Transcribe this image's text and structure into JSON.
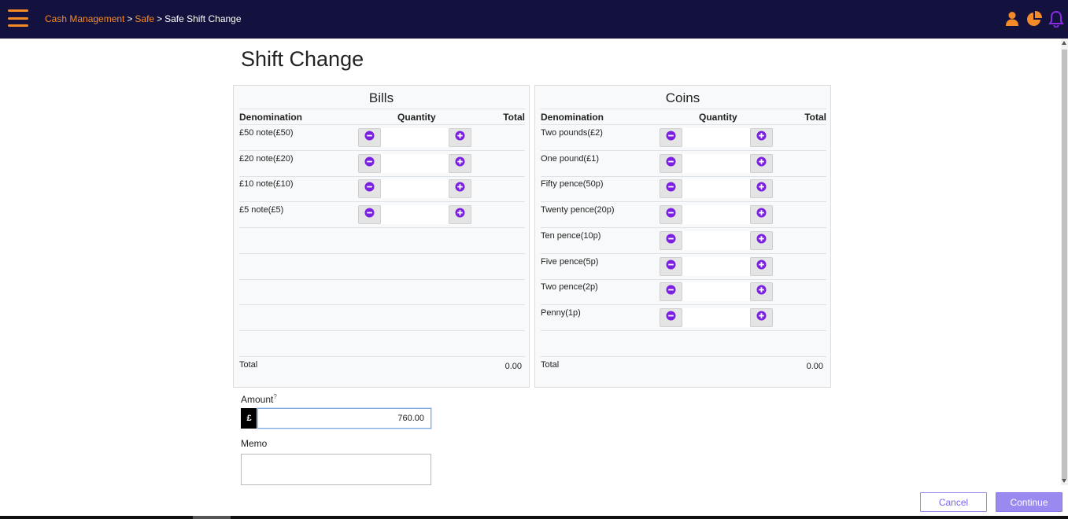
{
  "header": {
    "breadcrumb": {
      "item1": "Cash Management",
      "item2": "Safe",
      "current": "Safe Shift Change",
      "separator": ">"
    },
    "icons": [
      "user-icon",
      "pie-chart-icon",
      "bell-icon"
    ],
    "accent_color": "#f48a28",
    "bell_color": "#8a2be2",
    "background_color": "#13123f"
  },
  "page": {
    "title": "Shift Change"
  },
  "bills": {
    "title": "Bills",
    "headers": {
      "denomination": "Denomination",
      "quantity": "Quantity",
      "total": "Total"
    },
    "rows": [
      {
        "label": "£50 note(£50)",
        "quantity": "",
        "total": ""
      },
      {
        "label": "£20 note(£20)",
        "quantity": "",
        "total": ""
      },
      {
        "label": "£10 note(£10)",
        "quantity": "",
        "total": ""
      },
      {
        "label": "£5 note(£5)",
        "quantity": "",
        "total": ""
      }
    ],
    "total_label": "Total",
    "total_value": "0.00"
  },
  "coins": {
    "title": "Coins",
    "headers": {
      "denomination": "Denomination",
      "quantity": "Quantity",
      "total": "Total"
    },
    "rows": [
      {
        "label": "Two pounds(£2)",
        "quantity": "",
        "total": ""
      },
      {
        "label": "One pound(£1)",
        "quantity": "",
        "total": ""
      },
      {
        "label": "Fifty pence(50p)",
        "quantity": "",
        "total": ""
      },
      {
        "label": "Twenty pence(20p)",
        "quantity": "",
        "total": ""
      },
      {
        "label": "Ten pence(10p)",
        "quantity": "",
        "total": ""
      },
      {
        "label": "Five pence(5p)",
        "quantity": "",
        "total": ""
      },
      {
        "label": "Two pence(2p)",
        "quantity": "",
        "total": ""
      },
      {
        "label": "Penny(1p)",
        "quantity": "",
        "total": ""
      }
    ],
    "total_label": "Total",
    "total_value": "0.00"
  },
  "form": {
    "amount_label": "Amount",
    "amount_help": "?",
    "currency_symbol": "£",
    "amount_value": "760.00",
    "memo_label": "Memo",
    "memo_value": ""
  },
  "actions": {
    "cancel": "Cancel",
    "continue": "Continue"
  },
  "colors": {
    "button_icon": "#7b1fe0",
    "primary_button": "#9a8af0"
  }
}
